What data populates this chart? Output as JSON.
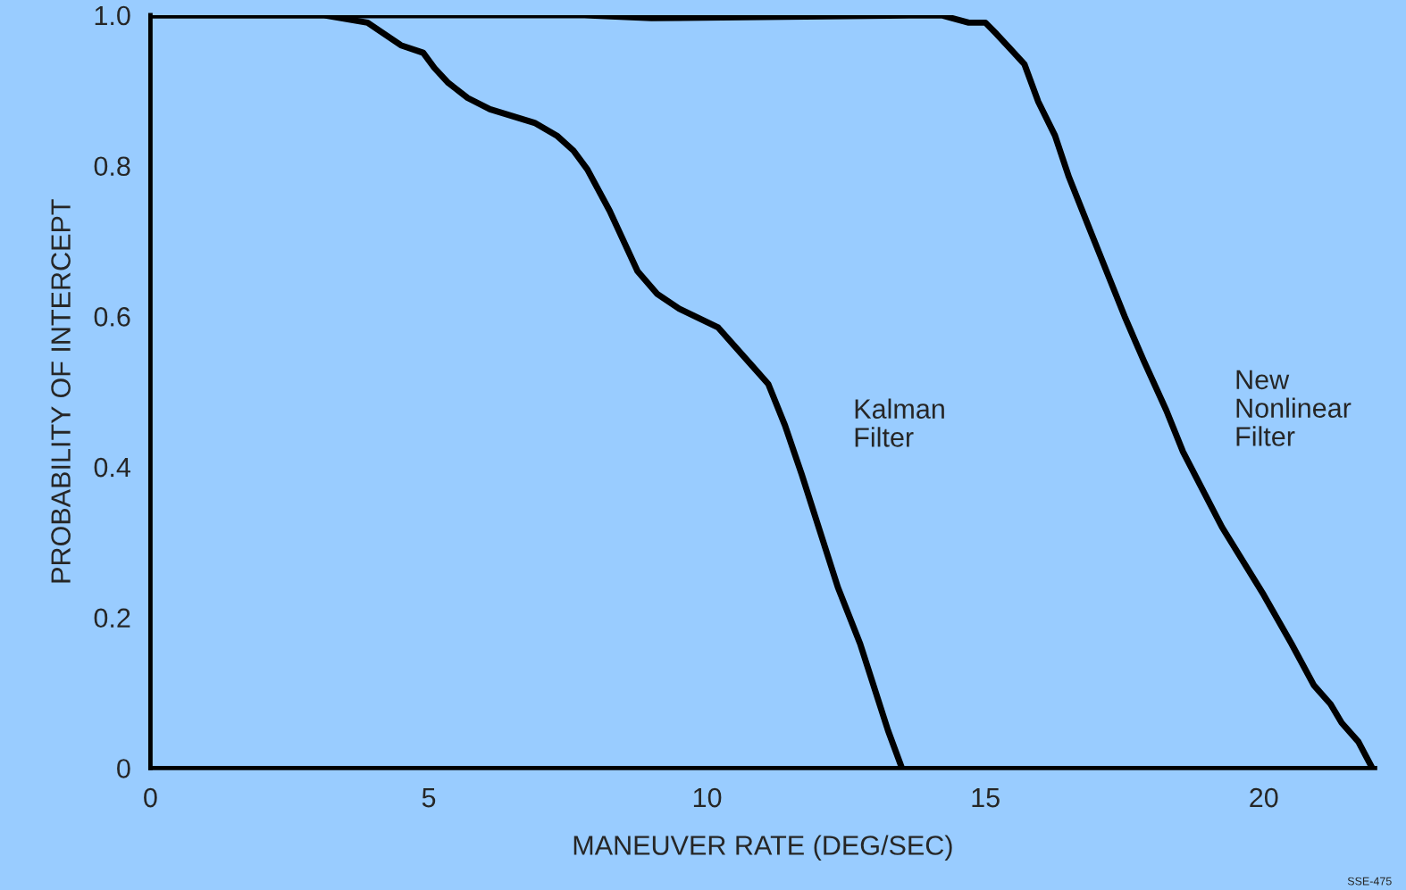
{
  "chart_data": {
    "type": "line",
    "xlabel": "MANEUVER RATE (DEG/SEC)",
    "ylabel": "PROBABILITY OF INTERCEPT",
    "xlim": [
      0,
      22
    ],
    "ylim": [
      0,
      1.0
    ],
    "xticks": [
      0,
      5,
      10,
      15,
      20
    ],
    "yticks": [
      0,
      0.2,
      0.4,
      0.6,
      0.8,
      {
        "value": 1.0,
        "label": "1.0"
      }
    ],
    "grid": false,
    "legend": false,
    "marker": "none",
    "line_style": "solid",
    "series": [
      {
        "name": "Kalman\nFilter",
        "color": "#000000",
        "x": [
          0,
          3.1,
          3.9,
          4.5,
          4.9,
          5.1,
          5.35,
          5.7,
          6.1,
          6.9,
          7.3,
          7.6,
          7.85,
          8.25,
          8.75,
          9.1,
          9.5,
          10.2,
          10.5,
          10.8,
          11.1,
          11.4,
          11.7,
          12.35,
          12.75,
          13.25,
          13.5
        ],
        "values": [
          1.0,
          1.0,
          0.99,
          0.96,
          0.95,
          0.93,
          0.91,
          0.89,
          0.875,
          0.857,
          0.84,
          0.82,
          0.795,
          0.74,
          0.66,
          0.63,
          0.61,
          0.585,
          0.56,
          0.535,
          0.51,
          0.455,
          0.39,
          0.24,
          0.165,
          0.05,
          0.0
        ]
      },
      {
        "name": "New\nNonlinear\nFilter",
        "color": "#000000",
        "x": [
          0,
          7.8,
          9.0,
          14.2,
          14.7,
          15.0,
          15.2,
          15.45,
          15.7,
          15.95,
          16.25,
          16.5,
          16.85,
          17.5,
          17.85,
          18.25,
          18.55,
          18.9,
          19.25,
          20.0,
          20.5,
          20.9,
          21.2,
          21.4,
          21.7,
          21.95
        ],
        "values": [
          1.0,
          1.0,
          0.996,
          1.0,
          0.99,
          0.99,
          0.975,
          0.955,
          0.935,
          0.885,
          0.84,
          0.785,
          0.72,
          0.6,
          0.54,
          0.475,
          0.42,
          0.37,
          0.32,
          0.23,
          0.165,
          0.11,
          0.085,
          0.06,
          0.035,
          0.0
        ]
      }
    ],
    "annotations": [
      "SSE-475"
    ]
  }
}
